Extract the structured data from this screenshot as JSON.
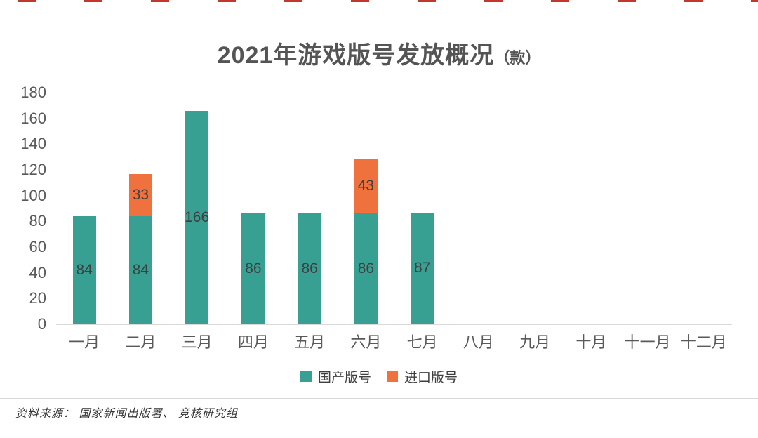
{
  "decor": {
    "top_dash_color": "#c4372f"
  },
  "chart_data": {
    "type": "bar",
    "stacked": true,
    "title": "2021年游戏版号发放概况",
    "title_suffix": "（款）",
    "categories": [
      "一月",
      "二月",
      "三月",
      "四月",
      "五月",
      "六月",
      "七月",
      "八月",
      "九月",
      "十月",
      "十一月",
      "十二月"
    ],
    "series": [
      {
        "name": "国产版号",
        "color": "#38a093",
        "values": [
          84,
          84,
          166,
          86,
          86,
          86,
          87,
          0,
          0,
          0,
          0,
          0
        ]
      },
      {
        "name": "进口版号",
        "color": "#ef713e",
        "values": [
          0,
          33,
          0,
          0,
          0,
          43,
          0,
          0,
          0,
          0,
          0,
          0
        ]
      }
    ],
    "ylim": [
      0,
      180
    ],
    "yticks": [
      0,
      20,
      40,
      60,
      80,
      100,
      120,
      140,
      160,
      180
    ],
    "grid": false,
    "legend_position": "bottom",
    "value_labels_shown": [
      "84",
      "84;33",
      "166",
      "86",
      "86",
      "86;43",
      "87"
    ]
  },
  "colors": {
    "axis_label": "#595959",
    "value_label": "#3f3f3f",
    "baseline": "#d9d9d9",
    "title": "#545454"
  },
  "source": {
    "label": "资料来源： 国家新闻出版署、 竞核研究组"
  }
}
